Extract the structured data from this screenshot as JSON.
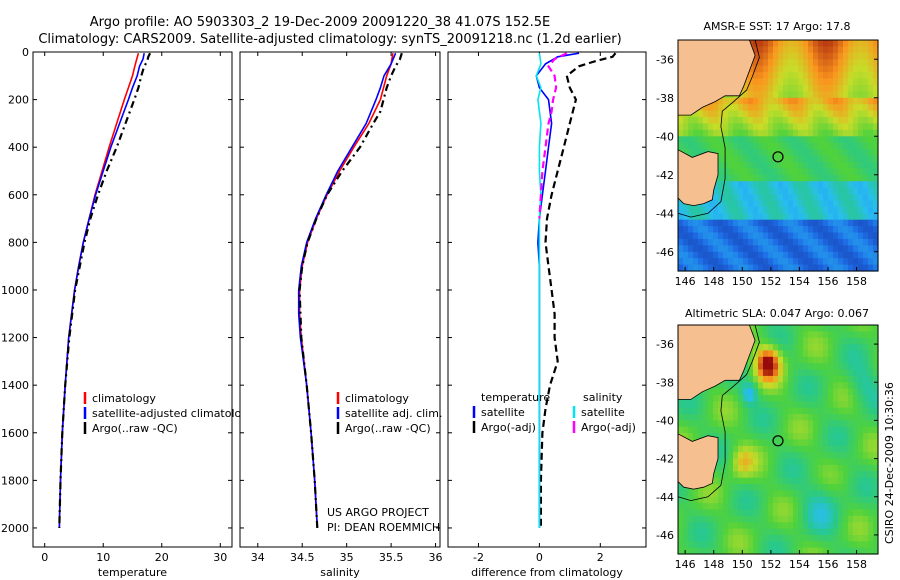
{
  "title_line1": "Argo profile: AO 5903303_2 19-Dec-2009 20091220_38 41.07S 152.5E",
  "title_line2": "Climatology: CARS2009. Satellite-adjusted climatology: synTS_20091218.nc (1.2d earlier)",
  "footer_label": "CSIRO 24-Dec-2009 10:30:36",
  "project_line1": "US ARGO PROJECT",
  "project_line2": "PI: DEAN ROEMMICH",
  "colors": {
    "climatology": "#ff0000",
    "satellite": "#0000ff",
    "argo": "#000000",
    "sal_satellite": "#00e5ee",
    "sal_argo": "#ff00ff",
    "land": "#f6bf8f",
    "coast": "#000000"
  },
  "chart_data": [
    {
      "type": "line",
      "id": "temperature",
      "xlabel": "temperature",
      "ylabel": "",
      "xlim": [
        -2,
        32
      ],
      "ylim": [
        2080,
        0
      ],
      "xticks": [
        0,
        10,
        20,
        30
      ],
      "yticks": [
        0,
        200,
        400,
        600,
        800,
        1000,
        1200,
        1400,
        1600,
        1800,
        2000
      ],
      "legend": [
        "climatology",
        "satellite-adjusted climatology",
        "Argo(..raw -QC)"
      ],
      "series": [
        {
          "name": "climatology",
          "color": "#ff0000",
          "dash": "",
          "depth": [
            5,
            50,
            100,
            150,
            200,
            300,
            400,
            500,
            600,
            700,
            800,
            900,
            1000,
            1200,
            1400,
            1600,
            1800,
            2000
          ],
          "values": [
            16.0,
            15.5,
            15.0,
            14.3,
            13.6,
            12.3,
            11.0,
            9.8,
            8.6,
            7.6,
            6.6,
            5.8,
            5.1,
            4.1,
            3.5,
            3.0,
            2.7,
            2.5
          ]
        },
        {
          "name": "satellite-adjusted climatology",
          "color": "#0000ff",
          "dash": "",
          "depth": [
            5,
            30,
            60,
            100,
            150,
            200,
            300,
            400,
            500,
            600,
            700,
            800,
            900,
            1000,
            1200,
            1400,
            1600,
            1800,
            2000
          ],
          "values": [
            17.0,
            16.8,
            16.2,
            15.8,
            15.0,
            14.3,
            12.8,
            11.3,
            10.0,
            8.7,
            7.6,
            6.6,
            5.8,
            5.1,
            4.1,
            3.5,
            3.0,
            2.7,
            2.5
          ]
        },
        {
          "name": "Argo(..raw -QC)",
          "color": "#000000",
          "dash": "7,4,2,4",
          "depth": [
            5,
            20,
            40,
            60,
            100,
            150,
            200,
            300,
            400,
            500,
            600,
            700,
            800,
            1000,
            1200,
            1400,
            1600,
            1800,
            2000
          ],
          "values": [
            18.0,
            17.7,
            17.5,
            17.0,
            16.5,
            16.0,
            15.3,
            13.8,
            12.3,
            10.6,
            9.1,
            7.8,
            6.8,
            5.2,
            4.2,
            3.5,
            3.0,
            2.7,
            2.5
          ]
        }
      ]
    },
    {
      "type": "line",
      "id": "salinity",
      "xlabel": "salinity",
      "ylabel": "",
      "xlim": [
        33.8,
        36.05
      ],
      "ylim": [
        2080,
        0
      ],
      "xticks": [
        34,
        34.5,
        35,
        35.5,
        36
      ],
      "yticks": [
        0,
        200,
        400,
        600,
        800,
        1000,
        1200,
        1400,
        1600,
        1800,
        2000
      ],
      "legend": [
        "climatology",
        "satellite adj. clim.",
        "Argo(..raw -QC)"
      ],
      "series": [
        {
          "name": "climatology",
          "color": "#ff0000",
          "dash": "",
          "depth": [
            5,
            50,
            100,
            200,
            300,
            400,
            500,
            600,
            700,
            800,
            900,
            1000,
            1100,
            1200,
            1400,
            1600,
            1800,
            2000
          ],
          "values": [
            35.52,
            35.5,
            35.45,
            35.38,
            35.25,
            35.08,
            34.92,
            34.78,
            34.66,
            34.56,
            34.5,
            34.47,
            34.47,
            34.49,
            34.55,
            34.6,
            34.64,
            34.67
          ]
        },
        {
          "name": "satellite adj. clim.",
          "color": "#0000ff",
          "dash": "",
          "depth": [
            5,
            50,
            100,
            150,
            200,
            300,
            400,
            500,
            600,
            700,
            800,
            900,
            1000,
            1100,
            1200,
            1400,
            1600,
            1800,
            2000
          ],
          "values": [
            35.55,
            35.5,
            35.42,
            35.38,
            35.33,
            35.22,
            35.06,
            34.9,
            34.77,
            34.65,
            34.55,
            34.49,
            34.46,
            34.46,
            34.48,
            34.55,
            34.6,
            34.64,
            34.67
          ]
        },
        {
          "name": "Argo(..raw -QC)",
          "color": "#000000",
          "dash": "7,4,2,4",
          "depth": [
            5,
            30,
            60,
            100,
            150,
            250,
            300,
            400,
            500,
            600,
            700,
            800,
            900,
            1000,
            1200,
            1400,
            1600,
            1800,
            2000
          ],
          "values": [
            35.62,
            35.6,
            35.55,
            35.5,
            35.45,
            35.38,
            35.3,
            35.15,
            34.95,
            34.78,
            34.66,
            34.56,
            34.5,
            34.47,
            34.49,
            34.55,
            34.6,
            34.64,
            34.67
          ]
        }
      ]
    },
    {
      "type": "line",
      "id": "difference",
      "xlabel": "difference from climatology",
      "ylabel": "",
      "xlim": [
        -3,
        3.5
      ],
      "ylim": [
        2080,
        0
      ],
      "xticks": [
        -2,
        0,
        2
      ],
      "yticks": [
        0,
        200,
        400,
        600,
        800,
        1000,
        1200,
        1400,
        1600,
        1800,
        2000
      ],
      "legend_temperature": {
        "heading": "temperature",
        "items": [
          "satellite",
          "Argo(-adj)"
        ]
      },
      "legend_salinity": {
        "heading": "salinity",
        "items": [
          "satellite",
          "Argo(-adj)"
        ]
      },
      "series": [
        {
          "name": "temperature satellite",
          "color": "#0000ff",
          "dash": "",
          "depth": [
            5,
            20,
            50,
            100,
            150,
            200,
            300,
            400,
            500,
            600,
            700,
            800,
            900,
            1000,
            1200,
            1400,
            1600,
            1800,
            2000
          ],
          "values": [
            1.3,
            0.6,
            0.2,
            -0.1,
            0.0,
            0.3,
            0.4,
            0.3,
            0.2,
            0.1,
            0.0,
            -0.05,
            0.0,
            0.0,
            0.0,
            0.0,
            0.0,
            0.0,
            0.0
          ]
        },
        {
          "name": "temperature Argo(-adj)",
          "color": "#000000",
          "dash": "7,4",
          "depth": [
            5,
            20,
            40,
            60,
            100,
            150,
            200,
            300,
            400,
            500,
            600,
            700,
            800,
            900,
            1000,
            1100,
            1200,
            1300,
            1400,
            1500,
            1600,
            1800,
            2000
          ],
          "values": [
            2.5,
            2.4,
            1.8,
            1.3,
            0.9,
            1.0,
            1.2,
            1.0,
            0.8,
            0.6,
            0.4,
            0.25,
            0.2,
            0.3,
            0.4,
            0.5,
            0.5,
            0.6,
            0.35,
            0.2,
            0.1,
            0.05,
            0.05
          ]
        },
        {
          "name": "salinity satellite",
          "color": "#00e5ee",
          "dash": "",
          "depth": [
            5,
            50,
            100,
            150,
            200,
            300,
            400,
            500,
            600,
            700,
            800,
            1000,
            1200,
            1400,
            1600,
            1800,
            2000
          ],
          "values": [
            0.0,
            0.05,
            -0.1,
            0.05,
            -0.05,
            0.05,
            0.0,
            0.0,
            0.05,
            0.0,
            0.0,
            0.0,
            0.0,
            0.0,
            0.0,
            0.0,
            0.0
          ]
        },
        {
          "name": "salinity Argo(-adj)",
          "color": "#ff00ff",
          "dash": "7,4",
          "depth": [
            5,
            30,
            60,
            100,
            150,
            200,
            250,
            300,
            400,
            500,
            600,
            700
          ],
          "values": [
            0.9,
            0.5,
            0.3,
            0.5,
            0.55,
            0.45,
            0.4,
            0.3,
            0.2,
            0.1,
            0.05,
            0.0
          ]
        }
      ]
    },
    {
      "type": "heatmap",
      "id": "sst-map",
      "title": "AMSR-E SST: 17  Argo: 17.8",
      "xlim": [
        145.5,
        159.5
      ],
      "ylim": [
        -47,
        -35
      ],
      "xticks": [
        146,
        148,
        150,
        152,
        154,
        156,
        158
      ],
      "yticks": [
        -36,
        -38,
        -40,
        -42,
        -44,
        -46
      ],
      "float_lon": 152.5,
      "float_lat": -41.07
    },
    {
      "type": "heatmap",
      "id": "sla-map",
      "title": "Altimetric SLA: 0.047  Argo: 0.067",
      "xlim": [
        145.5,
        159.5
      ],
      "ylim": [
        -47,
        -35
      ],
      "xticks": [
        146,
        148,
        150,
        152,
        154,
        156,
        158
      ],
      "yticks": [
        -36,
        -38,
        -40,
        -42,
        -44,
        -46
      ],
      "float_lon": 152.5,
      "float_lat": -41.07
    }
  ]
}
